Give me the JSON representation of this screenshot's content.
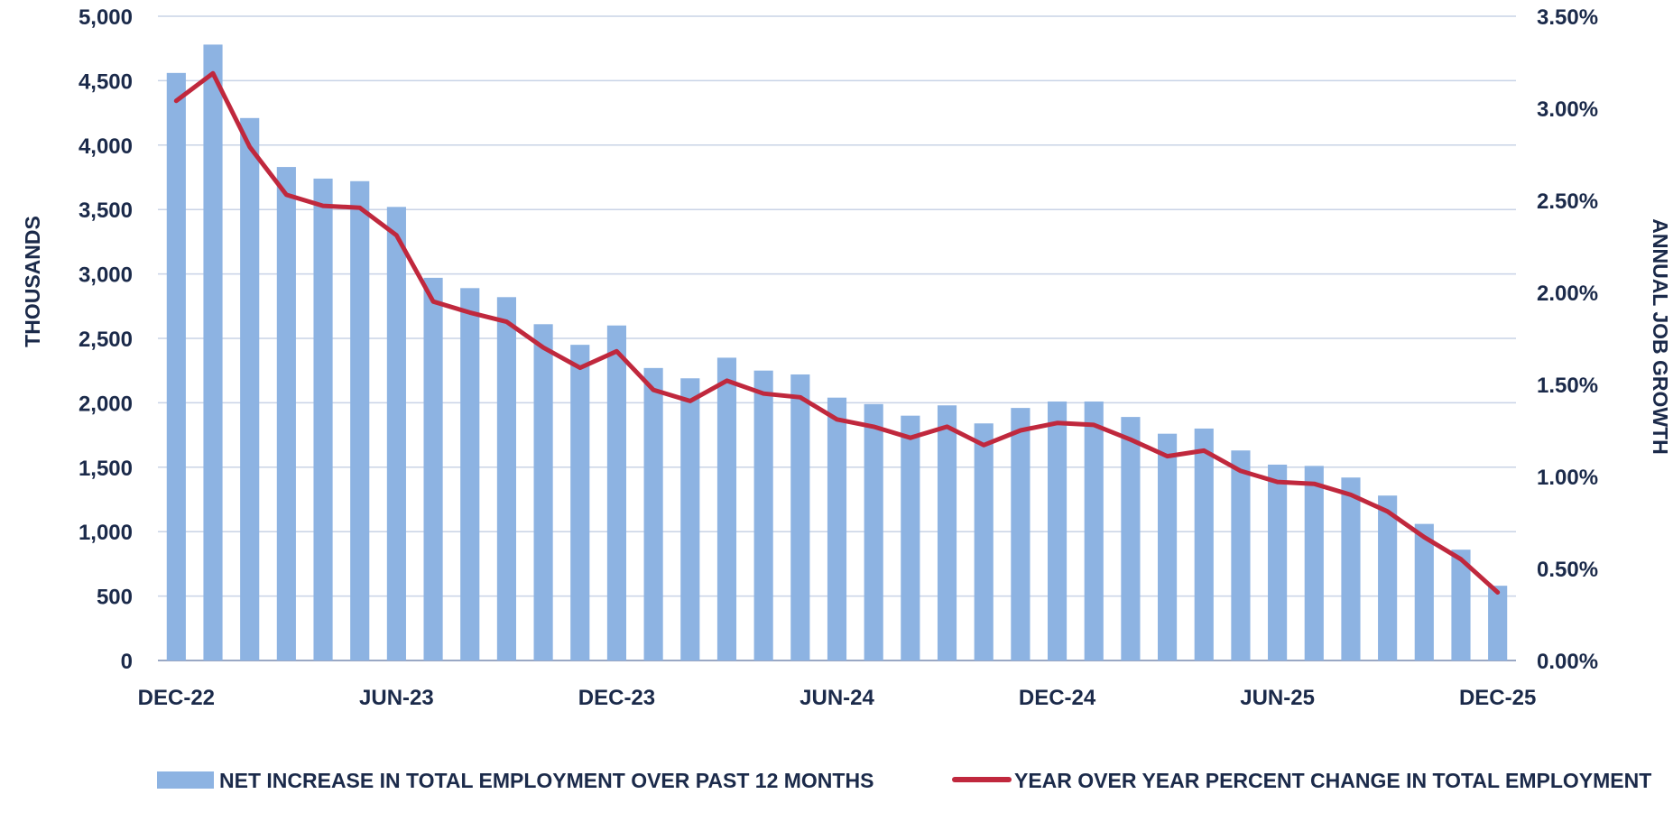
{
  "chart_data": {
    "type": "bar",
    "categories": [
      "DEC-22",
      "JAN-23",
      "FEB-23",
      "MAR-23",
      "APR-23",
      "MAY-23",
      "JUN-23",
      "JUL-23",
      "AUG-23",
      "SEP-23",
      "OCT-23",
      "NOV-23",
      "DEC-23",
      "JAN-24",
      "FEB-24",
      "MAR-24",
      "APR-24",
      "MAY-24",
      "JUN-24",
      "JUL-24",
      "AUG-24",
      "SEP-24",
      "OCT-24",
      "NOV-24",
      "DEC-24",
      "JAN-25",
      "FEB-25",
      "MAR-25",
      "APR-25",
      "MAY-25",
      "JUN-25",
      "JUL-25",
      "AUG-25",
      "SEP-25",
      "OCT-25",
      "NOV-25",
      "DEC-25"
    ],
    "x_tick_labels": [
      "DEC-22",
      "JUN-23",
      "DEC-23",
      "JUN-24",
      "DEC-24",
      "JUN-25",
      "DEC-25"
    ],
    "x_tick_every": 6,
    "series": [
      {
        "name": "NET INCREASE IN TOTAL EMPLOYMENT OVER PAST 12 MONTHS",
        "type": "bar",
        "axis": "left",
        "color": "#8db3e2",
        "values": [
          4560,
          4780,
          4210,
          3830,
          3740,
          3720,
          3520,
          2970,
          2890,
          2820,
          2610,
          2450,
          2600,
          2270,
          2190,
          2350,
          2250,
          2220,
          2040,
          1990,
          1900,
          1980,
          1840,
          1960,
          2010,
          2010,
          1890,
          1760,
          1800,
          1630,
          1520,
          1510,
          1420,
          1280,
          1060,
          860,
          580
        ]
      },
      {
        "name": "YEAR OVER YEAR PERCENT CHANGE IN TOTAL EMPLOYMENT",
        "type": "line",
        "axis": "right",
        "color": "#c0283d",
        "values": [
          3.04,
          3.19,
          2.79,
          2.53,
          2.47,
          2.46,
          2.31,
          1.95,
          1.89,
          1.84,
          1.7,
          1.59,
          1.68,
          1.47,
          1.41,
          1.52,
          1.45,
          1.43,
          1.31,
          1.27,
          1.21,
          1.27,
          1.17,
          1.25,
          1.29,
          1.28,
          1.2,
          1.11,
          1.14,
          1.03,
          0.97,
          0.96,
          0.9,
          0.81,
          0.67,
          0.55,
          0.37
        ]
      }
    ],
    "y_left": {
      "label": "THOUSANDS",
      "min": 0,
      "max": 5000,
      "step": 500,
      "tick_labels": [
        "0",
        "500",
        "1,000",
        "1,500",
        "2,000",
        "2,500",
        "3,000",
        "3,500",
        "4,000",
        "4,500",
        "5,000"
      ]
    },
    "y_right": {
      "label": "ANNUAL JOB GROWTH",
      "min": 0,
      "max": 3.5,
      "step": 0.5,
      "tick_labels": [
        "0.00%",
        "0.50%",
        "1.00%",
        "1.50%",
        "2.00%",
        "2.50%",
        "3.00%",
        "3.50%"
      ]
    },
    "grid": true,
    "legend_position": "bottom"
  }
}
